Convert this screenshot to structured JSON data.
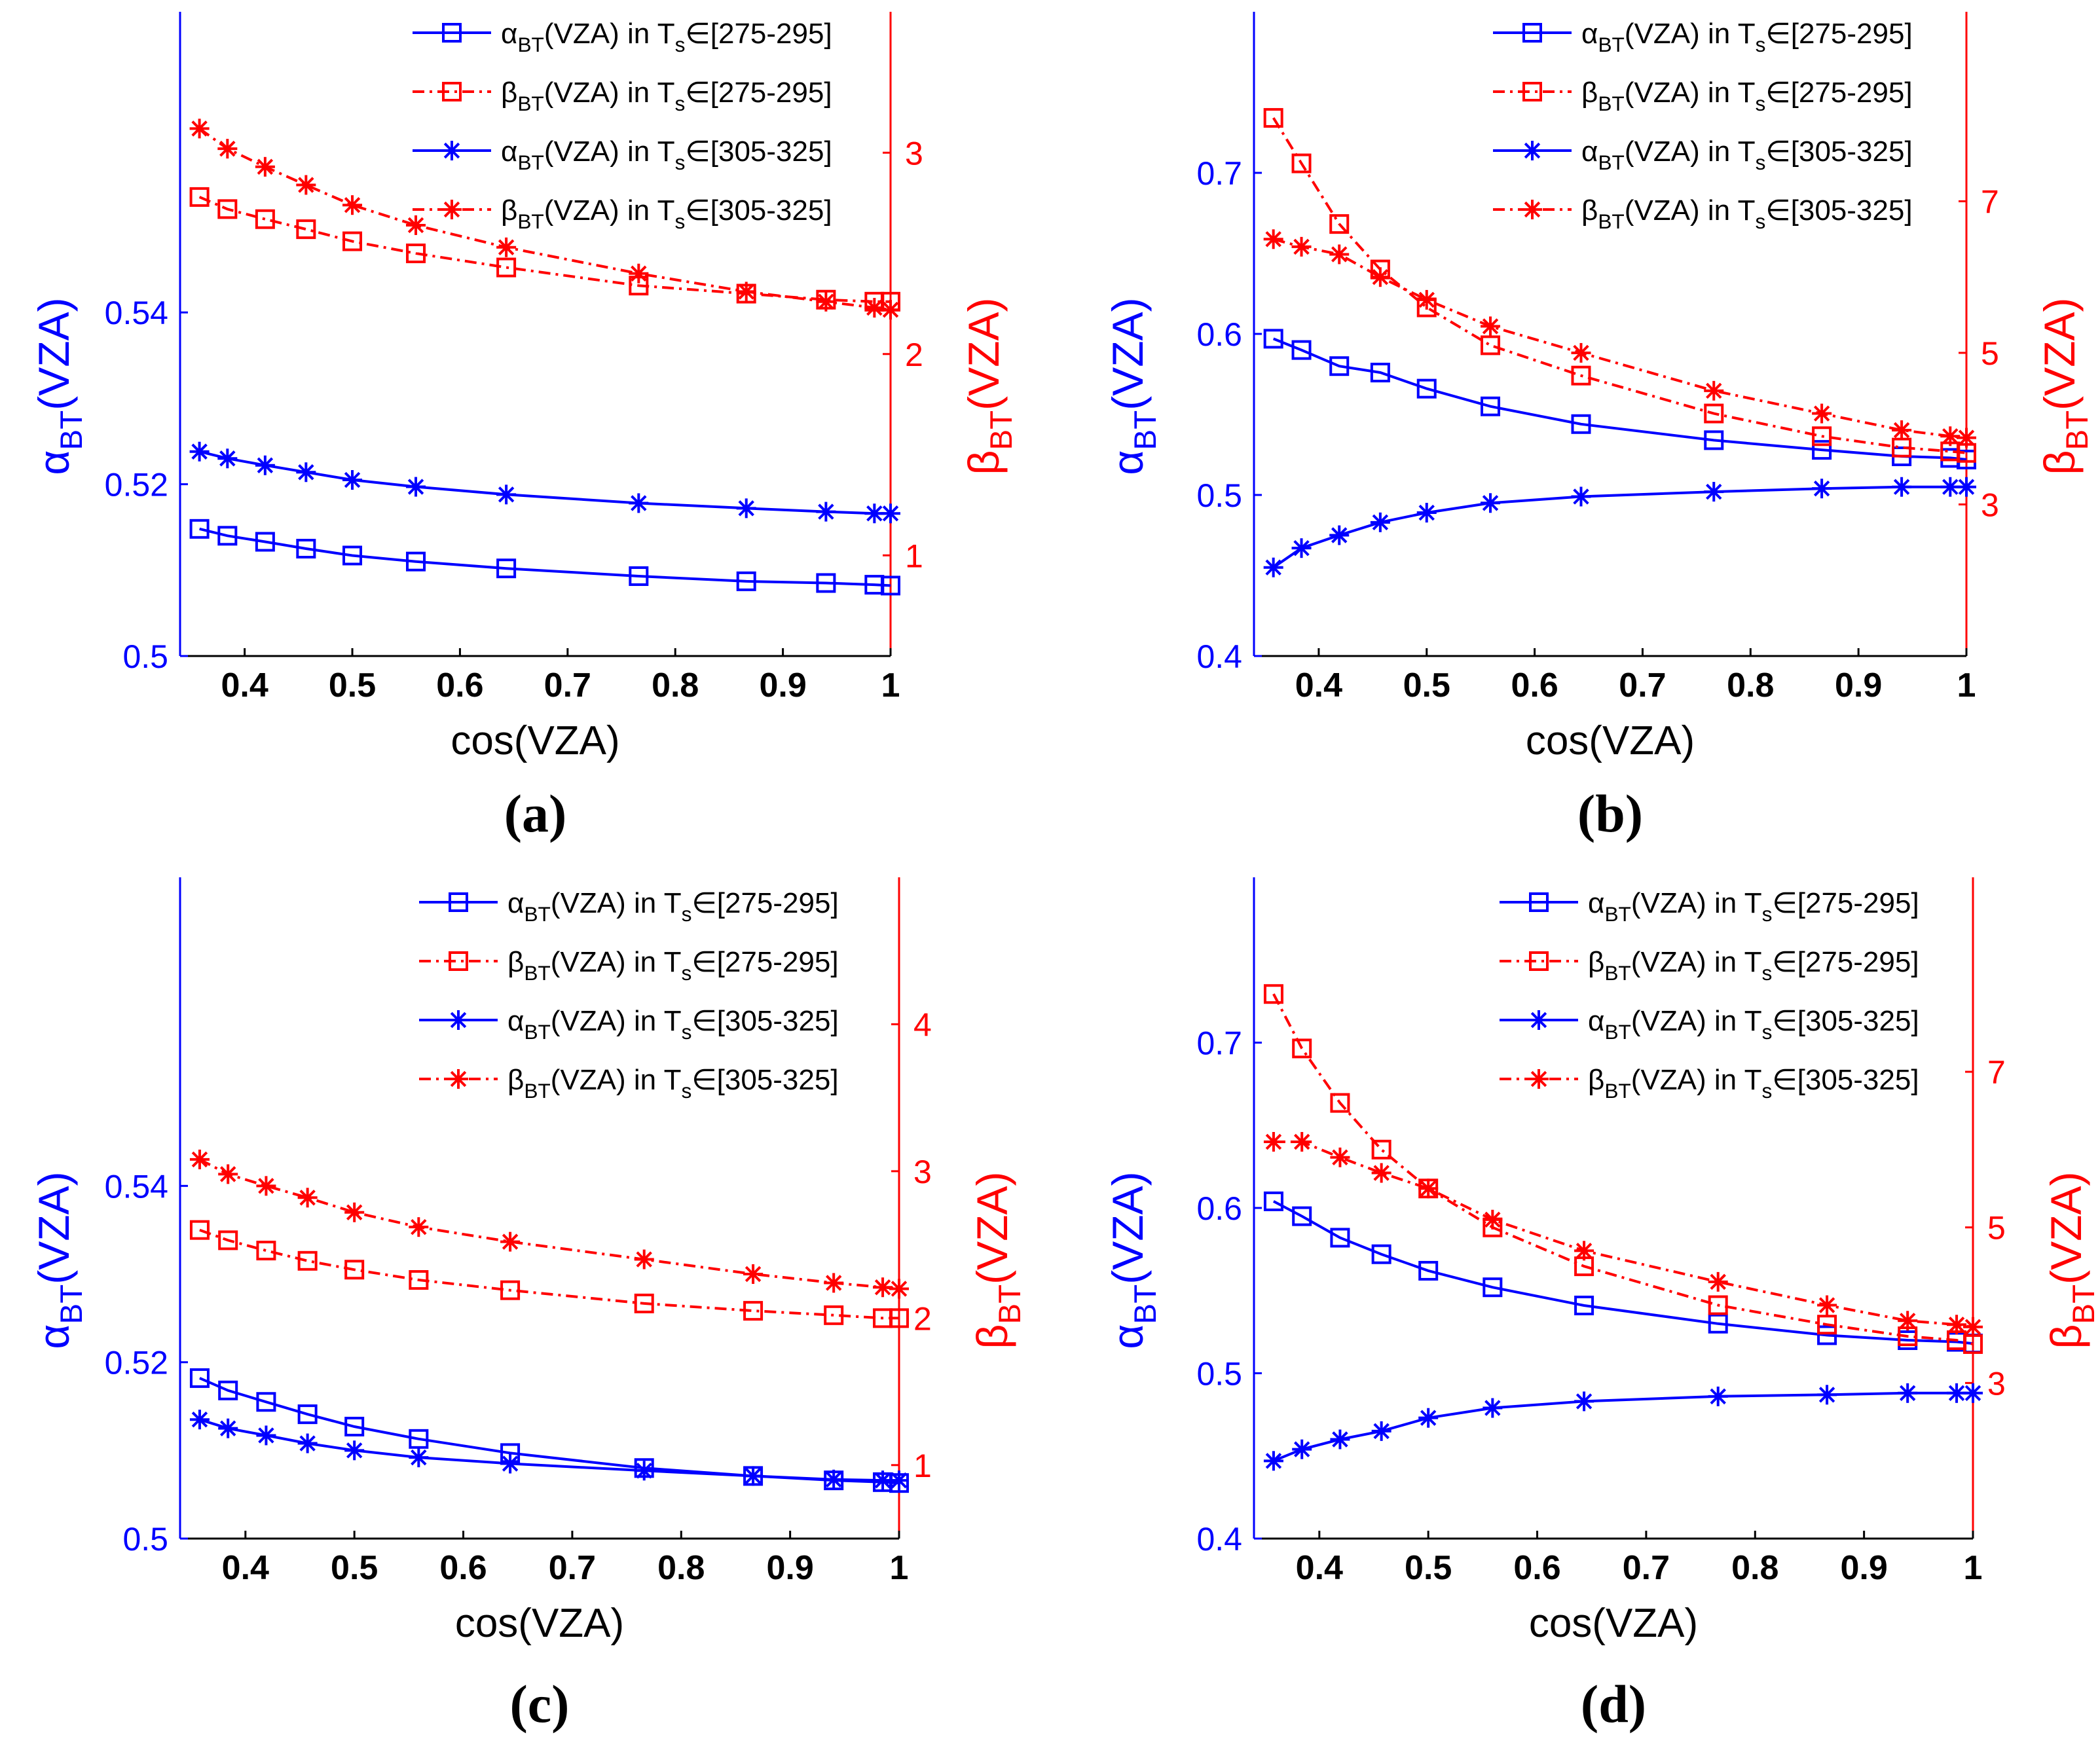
{
  "colors": {
    "alpha": "#0000ff",
    "beta": "#ff0000"
  },
  "chart_data": [
    {
      "type": "line",
      "caption": "(a)",
      "xlabel": "cos(VZA)",
      "ylabel_left": "α_BT(VZA)",
      "ylabel_right": "β_BT(VZA)",
      "xlim": [
        0.34,
        1.0
      ],
      "ylim_left": [
        0.5,
        0.575
      ],
      "ylim_right": [
        0.5,
        3.7
      ],
      "xticks": [
        "0.4",
        "0.5",
        "0.6",
        "0.7",
        "0.8",
        "0.9",
        "1"
      ],
      "yticks_left": [
        "0.5",
        "0.52",
        "0.54"
      ],
      "yticks_right": [
        "1",
        "2",
        "3"
      ],
      "x": [
        0.358,
        0.384,
        0.419,
        0.457,
        0.5,
        0.559,
        0.643,
        0.766,
        0.866,
        0.94,
        0.985,
        1.0
      ],
      "series": [
        {
          "name": "α_BT(VZA) in T_s∈[275-295]",
          "axis": "left",
          "marker": "square",
          "style": "solid",
          "color": "alpha",
          "values": [
            0.5148,
            0.514,
            0.5133,
            0.5125,
            0.5117,
            0.511,
            0.5102,
            0.5093,
            0.5087,
            0.5085,
            0.5083,
            0.5082
          ]
        },
        {
          "name": "β_BT(VZA) in T_s∈[275-295]",
          "axis": "right",
          "marker": "square",
          "style": "dashdot",
          "color": "beta",
          "values": [
            2.78,
            2.72,
            2.67,
            2.62,
            2.56,
            2.5,
            2.43,
            2.34,
            2.3,
            2.27,
            2.26,
            2.26
          ]
        },
        {
          "name": "α_BT(VZA) in T_s∈[305-325]",
          "axis": "left",
          "marker": "star",
          "style": "solid",
          "color": "alpha",
          "values": [
            0.5238,
            0.523,
            0.5222,
            0.5214,
            0.5205,
            0.5197,
            0.5188,
            0.5178,
            0.5172,
            0.5168,
            0.5166,
            0.5166
          ]
        },
        {
          "name": "β_BT(VZA) in T_s∈[305-325]",
          "axis": "right",
          "marker": "star",
          "style": "dashdot",
          "color": "beta",
          "values": [
            3.12,
            3.02,
            2.93,
            2.84,
            2.74,
            2.64,
            2.53,
            2.4,
            2.31,
            2.26,
            2.23,
            2.22
          ]
        }
      ],
      "legend": "top-right"
    },
    {
      "type": "line",
      "caption": "(b)",
      "xlabel": "cos(VZA)",
      "ylabel_left": "α_BT(VZA)",
      "ylabel_right": "β_BT(VZA)",
      "xlim": [
        0.34,
        1.0
      ],
      "ylim_left": [
        0.4,
        0.8
      ],
      "ylim_right": [
        1.0,
        9.5
      ],
      "xticks": [
        "0.4",
        "0.5",
        "0.6",
        "0.7",
        "0.8",
        "0.9",
        "1"
      ],
      "yticks_left": [
        "0.4",
        "0.5",
        "0.6",
        "0.7"
      ],
      "yticks_right": [
        "3",
        "5",
        "7"
      ],
      "x": [
        0.358,
        0.384,
        0.419,
        0.457,
        0.5,
        0.559,
        0.643,
        0.766,
        0.866,
        0.94,
        0.985,
        1.0
      ],
      "series": [
        {
          "name": "α_BT(VZA) in T_s∈[275-295]",
          "axis": "left",
          "marker": "square",
          "style": "solid",
          "color": "alpha",
          "values": [
            0.597,
            0.59,
            0.58,
            0.576,
            0.566,
            0.555,
            0.544,
            0.534,
            0.528,
            0.524,
            0.523,
            0.522
          ]
        },
        {
          "name": "β_BT(VZA) in T_s∈[275-295]",
          "axis": "right",
          "marker": "square",
          "style": "dashdot",
          "color": "beta",
          "values": [
            8.1,
            7.5,
            6.7,
            6.1,
            5.6,
            5.1,
            4.7,
            4.2,
            3.9,
            3.75,
            3.7,
            3.68
          ]
        },
        {
          "name": "α_BT(VZA) in T_s∈[305-325]",
          "axis": "left",
          "marker": "star",
          "style": "solid",
          "color": "alpha",
          "values": [
            0.455,
            0.467,
            0.475,
            0.483,
            0.489,
            0.495,
            0.499,
            0.502,
            0.504,
            0.505,
            0.505,
            0.505
          ]
        },
        {
          "name": "β_BT(VZA) in T_s∈[305-325]",
          "axis": "right",
          "marker": "star",
          "style": "dashdot",
          "color": "beta",
          "values": [
            6.5,
            6.4,
            6.3,
            6.0,
            5.7,
            5.35,
            5.0,
            4.5,
            4.2,
            3.98,
            3.9,
            3.88
          ]
        }
      ],
      "legend": "top-right"
    },
    {
      "type": "line",
      "caption": "(c)",
      "xlabel": "cos(VZA)",
      "ylabel_left": "α_BT(VZA)",
      "ylabel_right": "β_BT(VZA)",
      "xlim": [
        0.34,
        1.0
      ],
      "ylim_left": [
        0.5,
        0.575
      ],
      "ylim_right": [
        0.5,
        5.0
      ],
      "xticks": [
        "0.4",
        "0.5",
        "0.6",
        "0.7",
        "0.8",
        "0.9",
        "1"
      ],
      "yticks_left": [
        "0.5",
        "0.52",
        "0.54"
      ],
      "yticks_right": [
        "1",
        "2",
        "3",
        "4"
      ],
      "x": [
        0.358,
        0.384,
        0.419,
        0.457,
        0.5,
        0.559,
        0.643,
        0.766,
        0.866,
        0.94,
        0.985,
        1.0
      ],
      "series": [
        {
          "name": "α_BT(VZA) in T_s∈[275-295]",
          "axis": "left",
          "marker": "square",
          "style": "solid",
          "color": "alpha",
          "values": [
            0.5182,
            0.5168,
            0.5155,
            0.5141,
            0.5127,
            0.5113,
            0.5097,
            0.508,
            0.5071,
            0.5066,
            0.5064,
            0.5063
          ]
        },
        {
          "name": "β_BT(VZA) in T_s∈[275-295]",
          "axis": "right",
          "marker": "square",
          "style": "dashdot",
          "color": "beta",
          "values": [
            2.6,
            2.53,
            2.46,
            2.39,
            2.33,
            2.26,
            2.19,
            2.1,
            2.05,
            2.02,
            2.0,
            2.0
          ]
        },
        {
          "name": "α_BT(VZA) in T_s∈[305-325]",
          "axis": "left",
          "marker": "star",
          "style": "solid",
          "color": "alpha",
          "values": [
            0.5135,
            0.5125,
            0.5117,
            0.5108,
            0.51,
            0.5092,
            0.5085,
            0.5077,
            0.5071,
            0.5067,
            0.5066,
            0.5066
          ]
        },
        {
          "name": "β_BT(VZA) in T_s∈[305-325]",
          "axis": "right",
          "marker": "star",
          "style": "dashdot",
          "color": "beta",
          "values": [
            3.08,
            2.98,
            2.9,
            2.82,
            2.72,
            2.62,
            2.52,
            2.4,
            2.3,
            2.24,
            2.21,
            2.2
          ]
        }
      ],
      "legend": "top-right"
    },
    {
      "type": "line",
      "caption": "(d)",
      "xlabel": "cos(VZA)",
      "ylabel_left": "α_BT(VZA)",
      "ylabel_right": "β_BT(VZA)",
      "xlim": [
        0.34,
        1.0
      ],
      "ylim_left": [
        0.4,
        0.8
      ],
      "ylim_right": [
        1.0,
        9.5
      ],
      "xticks": [
        "0.4",
        "0.5",
        "0.6",
        "0.7",
        "0.8",
        "0.9",
        "1"
      ],
      "yticks_left": [
        "0.4",
        "0.5",
        "0.6",
        "0.7"
      ],
      "yticks_right": [
        "3",
        "5",
        "7"
      ],
      "x": [
        0.358,
        0.384,
        0.419,
        0.457,
        0.5,
        0.559,
        0.643,
        0.766,
        0.866,
        0.94,
        0.985,
        1.0
      ],
      "series": [
        {
          "name": "α_BT(VZA) in T_s∈[275-295]",
          "axis": "left",
          "marker": "square",
          "style": "solid",
          "color": "alpha",
          "values": [
            0.604,
            0.595,
            0.582,
            0.572,
            0.562,
            0.552,
            0.541,
            0.53,
            0.523,
            0.52,
            0.519,
            0.518
          ]
        },
        {
          "name": "β_BT(VZA) in T_s∈[275-295]",
          "axis": "right",
          "marker": "square",
          "style": "dashdot",
          "color": "beta",
          "values": [
            8.0,
            7.3,
            6.6,
            6.0,
            5.5,
            5.0,
            4.5,
            4.0,
            3.75,
            3.6,
            3.55,
            3.5
          ]
        },
        {
          "name": "α_BT(VZA) in T_s∈[305-325]",
          "axis": "left",
          "marker": "star",
          "style": "solid",
          "color": "alpha",
          "values": [
            0.447,
            0.454,
            0.46,
            0.465,
            0.473,
            0.479,
            0.483,
            0.486,
            0.487,
            0.488,
            0.488,
            0.488
          ]
        },
        {
          "name": "β_BT(VZA) in T_s∈[305-325]",
          "axis": "right",
          "marker": "star",
          "style": "dashdot",
          "color": "beta",
          "values": [
            6.1,
            6.1,
            5.9,
            5.7,
            5.5,
            5.1,
            4.7,
            4.3,
            4.0,
            3.8,
            3.75,
            3.72
          ]
        }
      ],
      "legend": "top-right"
    }
  ]
}
